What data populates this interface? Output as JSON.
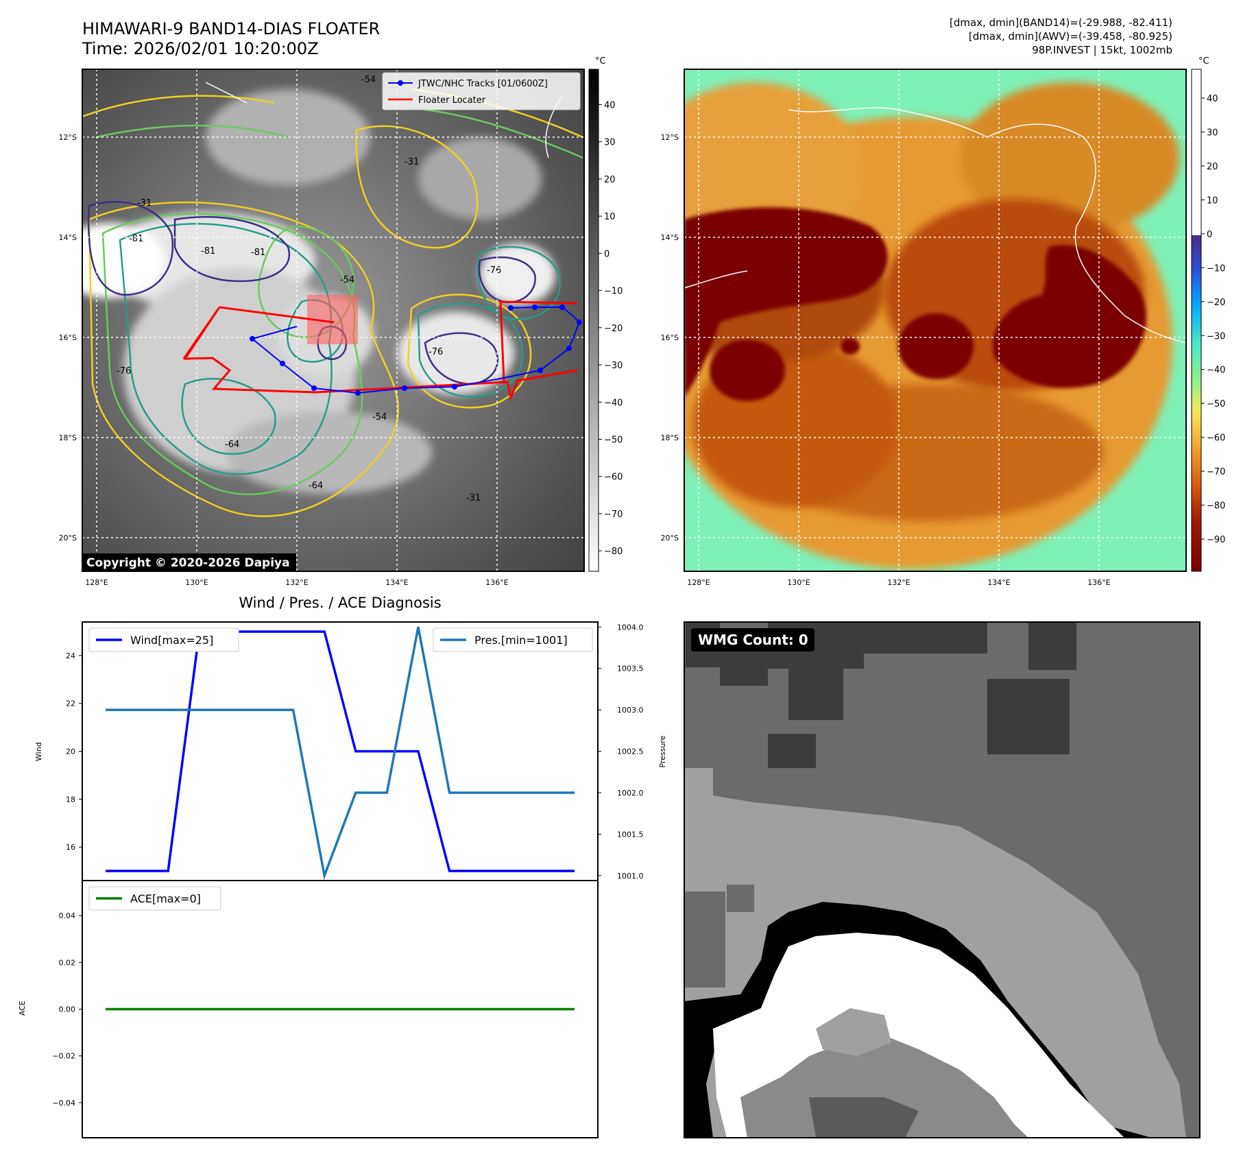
{
  "header": {
    "title_line1": "HIMAWARI-9 BAND14-DIAS FLOATER",
    "title_line2": "Time: 2026/02/01 10:20:00Z",
    "stats_line1": "[dmax, dmin](BAND14)=(-29.988, -82.411)",
    "stats_line2": "[dmax, dmin](AWV)=(-39.458, -80.925)",
    "stats_line3": "98P.INVEST | 15kt, 1002mb"
  },
  "panels": {
    "ir": {
      "colorbar_unit": "°C",
      "colorbar_ticks": [
        40,
        30,
        20,
        10,
        0,
        -10,
        -20,
        -30,
        -40,
        -50,
        -60,
        -70,
        -80
      ],
      "legend_tracks": "JTWC/NHC Tracks [01/0600Z]",
      "legend_floater": "Floater Locater",
      "copyright": "Copyright © 2020-2026 Dapiya",
      "contour_labels": [
        "-81",
        "-81",
        "-81",
        "-76",
        "-76",
        "-76",
        "-54",
        "-54",
        "-54",
        "-64",
        "-64",
        "-31",
        "-31",
        "-31"
      ]
    },
    "awv": {
      "colorbar_unit": "°C",
      "colorbar_ticks": [
        40,
        30,
        20,
        10,
        0,
        -10,
        -20,
        -30,
        -40,
        -50,
        -60,
        -70,
        -80,
        -90
      ]
    },
    "map_axes": {
      "lat_labels": [
        "12°S",
        "14°S",
        "16°S",
        "18°S",
        "20°S"
      ],
      "lon_labels": [
        "128°E",
        "130°E",
        "132°E",
        "134°E",
        "136°E"
      ]
    },
    "wmg": {
      "label": "WMG Count: 0"
    }
  },
  "colors": {
    "wind": "#0000ff",
    "pressure": "#1f77b4",
    "ace": "#008000",
    "track": "#0000ff",
    "floater": "#ff0000",
    "contour_yellow": "#f0d020",
    "contour_green": "#6cc860",
    "contour_teal": "#2a9a8c",
    "contour_navy": "#3b2f85"
  },
  "chart_data": [
    {
      "type": "line",
      "title": "Wind / Pres. / ACE Diagnosis",
      "x": [
        0,
        1,
        2,
        3,
        4,
        5,
        6,
        7,
        8,
        9,
        10,
        11,
        12,
        13,
        14,
        15
      ],
      "ylabel": "Wind",
      "ylabel2": "Pressure",
      "ylim": [
        14.6,
        25.4
      ],
      "y2lim": [
        1000.94,
        1004.06
      ],
      "yticks": [
        16,
        18,
        20,
        22,
        24
      ],
      "y2ticks": [
        1001.0,
        1001.5,
        1002.0,
        1002.5,
        1003.0,
        1003.5,
        1004.0
      ],
      "series": [
        {
          "name": "Wind[max=25]",
          "axis": "left",
          "values": [
            15,
            15,
            15,
            25,
            25,
            25,
            25,
            25,
            20,
            20,
            20,
            15,
            15,
            15,
            15,
            15
          ]
        },
        {
          "name": "Pres.[min=1001]",
          "axis": "right",
          "values": [
            1003,
            1003,
            1003,
            1003,
            1003,
            1003,
            1003,
            1001,
            1002,
            1002,
            1004,
            1002,
            1002,
            1002,
            1002,
            1002
          ]
        }
      ]
    },
    {
      "type": "line",
      "x": [
        0,
        15
      ],
      "ylabel": "ACE",
      "ylim": [
        -0.055,
        0.055
      ],
      "yticks": [
        0.04,
        0.02,
        0.0,
        -0.02,
        -0.04
      ],
      "ytick_labels": [
        "0.04",
        "0.02",
        "0.00",
        "−0.02",
        "−0.04"
      ],
      "series": [
        {
          "name": "ACE[max=0]",
          "values": [
            0,
            0
          ]
        }
      ]
    }
  ]
}
